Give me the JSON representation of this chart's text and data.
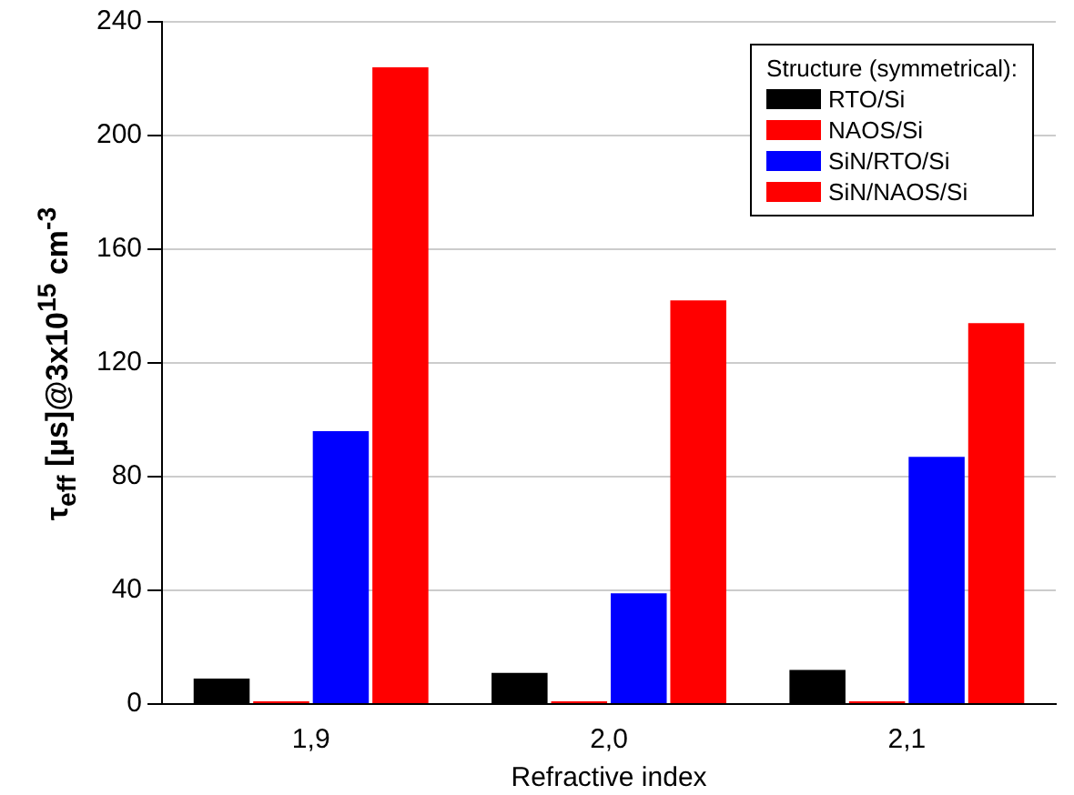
{
  "chart_data": {
    "type": "bar",
    "xlabel": "Refractive index",
    "ylabel": "τ$_{eff}$ [µs]@3x10$^{15}$ cm$^{-3}$",
    "legend_title": "Structure (symmetrical):",
    "categories": [
      "1,9",
      "2,0",
      "2,1"
    ],
    "series": [
      {
        "name": "RTO/Si",
        "color": "#000000",
        "values": [
          9,
          11,
          12
        ]
      },
      {
        "name": "NAOS/Si",
        "color": "#ff0000",
        "values": [
          1,
          1,
          1
        ]
      },
      {
        "name": "SiN/RTO/Si",
        "color": "#0000ff",
        "values": [
          96,
          39,
          87
        ]
      },
      {
        "name": "SiN/NAOS/Si",
        "color": "#ff0000",
        "values": [
          224,
          142,
          134
        ]
      }
    ],
    "ylim": [
      0,
      240
    ],
    "yticks": [
      0,
      40,
      80,
      120,
      160,
      200,
      240
    ],
    "grid": "y",
    "legend": "top right"
  }
}
